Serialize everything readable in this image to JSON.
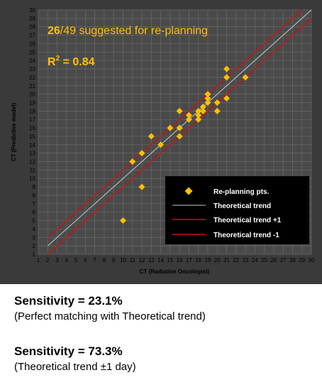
{
  "chart_data": {
    "type": "scatter",
    "xlabel": "CT (Radiation Oncologist)",
    "ylabel": "CT (Predictive model)",
    "xlim": [
      1,
      30
    ],
    "ylim": [
      1,
      30
    ],
    "x_ticks": [
      1,
      2,
      3,
      4,
      5,
      6,
      7,
      8,
      9,
      10,
      11,
      12,
      13,
      14,
      15,
      16,
      17,
      18,
      19,
      20,
      21,
      22,
      23,
      24,
      25,
      26,
      27,
      28,
      29,
      30
    ],
    "y_ticks": [
      1,
      2,
      3,
      4,
      5,
      6,
      7,
      8,
      9,
      10,
      11,
      12,
      13,
      14,
      15,
      16,
      17,
      18,
      19,
      20,
      21,
      22,
      23,
      24,
      25,
      26,
      27,
      28,
      29,
      30
    ],
    "grid": true,
    "legend_position": "bottom-right",
    "annotation_count": "26",
    "annotation_rest": "/49 suggested for re-planning",
    "r2_label": "R",
    "r2_sup": "2",
    "r2_value": " = 0.84",
    "colors": {
      "points": "#ffc000",
      "trend": "#c8c8c8",
      "bounds": "#d01010",
      "annotation": "#ffc000",
      "panel_background": "#3a3a3a",
      "plot_background": "#4a4a4a",
      "grid": "#6a6a6a"
    },
    "series": [
      {
        "name": "Re-planning pts.",
        "marker": "diamond",
        "points": [
          [
            10,
            5
          ],
          [
            11,
            12
          ],
          [
            12,
            13
          ],
          [
            12,
            9
          ],
          [
            13,
            15
          ],
          [
            14,
            14
          ],
          [
            15,
            16
          ],
          [
            16,
            15
          ],
          [
            16,
            16
          ],
          [
            16,
            18
          ],
          [
            17,
            17
          ],
          [
            17,
            17.5
          ],
          [
            18,
            17
          ],
          [
            18,
            17.5
          ],
          [
            18,
            18
          ],
          [
            18.5,
            18.5
          ],
          [
            18.5,
            18
          ],
          [
            19,
            19
          ],
          [
            19,
            19.5
          ],
          [
            19,
            20
          ],
          [
            20,
            18
          ],
          [
            20,
            19
          ],
          [
            21,
            19.5
          ],
          [
            21,
            22
          ],
          [
            21,
            23
          ],
          [
            23,
            22
          ]
        ]
      },
      {
        "name": "Theoretical trend",
        "line": [
          [
            2,
            2
          ],
          [
            30,
            30
          ]
        ]
      },
      {
        "name": "Theoretical trend +1",
        "line": [
          [
            2,
            3
          ],
          [
            29,
            30
          ]
        ]
      },
      {
        "name": "Theoretical trend -1",
        "line": [
          [
            2,
            1
          ],
          [
            30,
            29
          ]
        ]
      }
    ]
  },
  "notes": [
    {
      "head": "Sensitivity = 23.1%",
      "sub": "(Perfect matching with Theoretical trend)"
    },
    {
      "head": "Sensitivity = 73.3%",
      "sub": "(Theoretical trend ±1 day)"
    }
  ]
}
